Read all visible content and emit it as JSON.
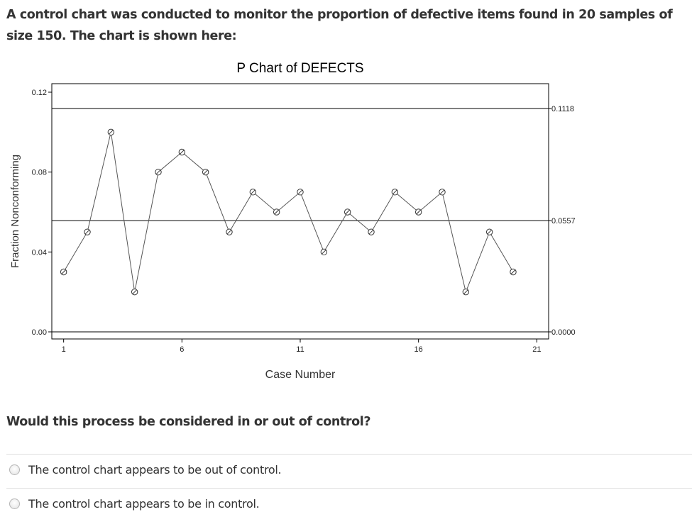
{
  "question": {
    "intro": "A control chart was conducted to monitor the proportion of defective items found in 20 samples of size 150. The chart is shown here:",
    "prompt": "Would this process be considered in or out of control?",
    "options": [
      {
        "label": "The control chart appears to be out of control."
      },
      {
        "label": "The control chart appears to be in control."
      }
    ]
  },
  "chart_data": {
    "type": "line",
    "title": "P Chart of DEFECTS",
    "xlabel": "Case Number",
    "ylabel": "Fraction Nonconforming",
    "x": [
      1,
      2,
      3,
      4,
      5,
      6,
      7,
      8,
      9,
      10,
      11,
      12,
      13,
      14,
      15,
      16,
      17,
      18,
      19,
      20
    ],
    "series": [
      {
        "values": [
          0.03,
          0.05,
          0.1,
          0.02,
          0.08,
          0.09,
          0.08,
          0.05,
          0.07,
          0.06,
          0.07,
          0.04,
          0.06,
          0.05,
          0.07,
          0.06,
          0.07,
          0.02,
          0.05,
          0.03
        ]
      }
    ],
    "reference_lines": [
      {
        "value": 0.1118,
        "label": "0.1118"
      },
      {
        "value": 0.0557,
        "label": "0.0557"
      },
      {
        "value": 0.0,
        "label": "0.0000"
      }
    ],
    "xticks": [
      1,
      6,
      11,
      16,
      21
    ],
    "xtick_labels": [
      "1",
      "6",
      "11",
      "16",
      "21"
    ],
    "yticks": [
      0.0,
      0.04,
      0.08,
      0.12
    ],
    "ytick_labels": [
      "0.00",
      "0.04",
      "0.08",
      "0.12"
    ],
    "xlim": [
      0.5,
      21.5
    ],
    "ylim": [
      0,
      0.12
    ],
    "grid": false,
    "legend": "none",
    "colors": {
      "line": "#555555",
      "marker": "#333333",
      "frame": "#000000"
    }
  }
}
